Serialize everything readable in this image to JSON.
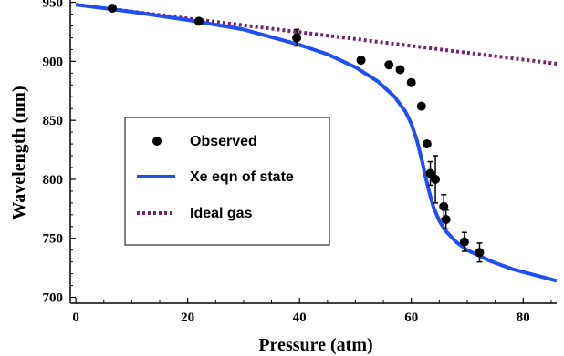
{
  "chart_data": {
    "type": "scatter",
    "xlabel": "Pressure (atm)",
    "ylabel": "Wavelength (nm)",
    "xlim": [
      -1,
      86
    ],
    "ylim": [
      695,
      952
    ],
    "x_ticks": [
      0,
      20,
      40,
      60,
      80
    ],
    "x_tick_labels": [
      "0",
      "20",
      "40",
      "60",
      "80"
    ],
    "y_ticks": [
      700,
      750,
      800,
      850,
      900,
      950
    ],
    "y_tick_labels": [
      "700",
      "750",
      "800",
      "850",
      "900",
      "950"
    ],
    "grid": false,
    "legend_position": "center-left",
    "series": [
      {
        "name": "Observed",
        "kind": "points",
        "color": "#000000",
        "x": [
          6.5,
          22,
          39.5,
          51,
          56,
          58,
          60,
          61.8,
          62.8,
          63.4,
          64.3,
          65.8,
          66.2,
          69.5,
          72.2
        ],
        "y": [
          945,
          934,
          920,
          901,
          897,
          893,
          882,
          862,
          830,
          805,
          800,
          777,
          766,
          747,
          738
        ],
        "yerr": [
          0,
          0,
          7,
          0,
          0,
          0,
          0,
          0,
          0,
          10,
          20,
          10,
          8,
          8,
          8
        ]
      },
      {
        "name": "Xe eqn of state",
        "kind": "line",
        "color": "#1f4ff0",
        "x": [
          0,
          10,
          20,
          30,
          40,
          45,
          50,
          54,
          57,
          59,
          60,
          61,
          62,
          62.5,
          63,
          63.5,
          64,
          65,
          66,
          68,
          70,
          74,
          78,
          82,
          86
        ],
        "y": [
          948,
          942,
          935,
          927,
          914,
          906,
          895,
          883,
          870,
          857,
          847,
          833,
          814,
          803,
          793,
          784,
          776,
          765,
          757,
          747,
          740,
          731,
          724,
          719,
          714
        ]
      },
      {
        "name": "Ideal gas",
        "kind": "dotted-line",
        "color": "#7a1f6e",
        "x": [
          0,
          86
        ],
        "y": [
          948,
          898
        ]
      }
    ]
  }
}
